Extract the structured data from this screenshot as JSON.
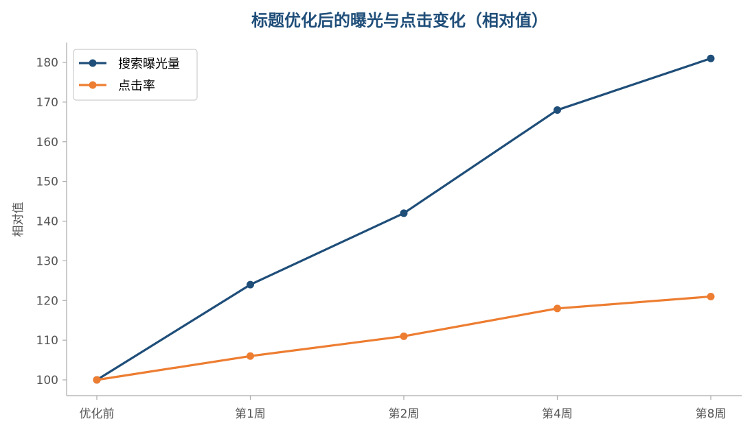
{
  "chart_data": {
    "type": "line",
    "title": "标题优化后的曝光与点击变化（相对值）",
    "xlabel": "",
    "ylabel": "相对值",
    "categories": [
      "优化前",
      "第1周",
      "第2周",
      "第4周",
      "第8周"
    ],
    "ylim": [
      96,
      185
    ],
    "yticks": [
      100,
      110,
      120,
      130,
      140,
      150,
      160,
      170,
      180
    ],
    "grid": false,
    "legend_position": "top-left",
    "series": [
      {
        "name": "搜索曝光量",
        "values": [
          100,
          124,
          142,
          168,
          181
        ],
        "color": "#1f4e79"
      },
      {
        "name": "点击率",
        "values": [
          100,
          106,
          111,
          118,
          121
        ],
        "color": "#ed7d31"
      }
    ],
    "colors": {
      "title": "#1f4e79",
      "axis": "#aaaaaa",
      "tick_text": "#555555"
    }
  }
}
